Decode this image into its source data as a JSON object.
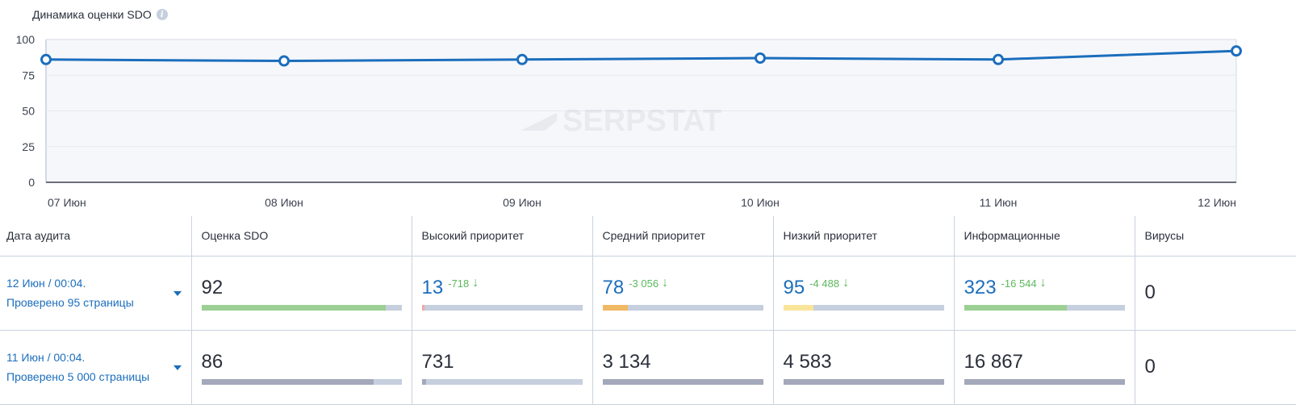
{
  "chart_data": {
    "type": "line",
    "title": "Динамика оценки SDO",
    "xlabel": "",
    "ylabel": "",
    "ylim": [
      0,
      100
    ],
    "yticks": [
      0,
      25,
      50,
      75,
      100
    ],
    "categories": [
      "07 Июн",
      "08 Июн",
      "09 Июн",
      "10 Июн",
      "11 Июн",
      "12 Июн"
    ],
    "series": [
      {
        "name": "Оценка SDO",
        "values": [
          86,
          85,
          86,
          87,
          86,
          92
        ],
        "color": "#1b6ebd"
      }
    ],
    "grid": true,
    "watermark": "SERPSTAT"
  },
  "header": {
    "title": "Динамика оценки SDO",
    "info_icon": "info-icon"
  },
  "table": {
    "columns": [
      "Дата аудита",
      "Оценка SDO",
      "Высокий приоритет",
      "Средний приоритет",
      "Низкий приоритет",
      "Информационные",
      "Вирусы"
    ],
    "rows": [
      {
        "date": "12 Июн / 00:04.",
        "pages": "Проверено 95 страницы",
        "sdo": {
          "value": "92",
          "pct": 92,
          "color": "#9ccf94"
        },
        "high": {
          "value": "13",
          "delta": "-718",
          "pct": 2,
          "color": "#f5a5a5"
        },
        "medium": {
          "value": "78",
          "delta": "-3 056",
          "pct": 16,
          "color": "#f0b965"
        },
        "low": {
          "value": "95",
          "delta": "-4 488",
          "pct": 19,
          "color": "#f8e59a"
        },
        "info": {
          "value": "323",
          "delta": "-16 544",
          "pct": 64,
          "color": "#9ccf94"
        },
        "viruses": "0"
      },
      {
        "date": "11 Июн / 00:04.",
        "pages": "Проверено 5 000 страницы",
        "sdo": {
          "value": "86",
          "pct": 86,
          "color": "#a3a8bb"
        },
        "high": {
          "value": "731",
          "pct": 3,
          "color": "#a3a8bb"
        },
        "medium": {
          "value": "3 134",
          "pct": 100,
          "color": "#a3a8bb"
        },
        "low": {
          "value": "4 583",
          "pct": 100,
          "color": "#a3a8bb"
        },
        "info": {
          "value": "16 867",
          "pct": 100,
          "color": "#a3a8bb"
        },
        "viruses": "0"
      }
    ]
  },
  "colors": {
    "accent": "#1b6ebd",
    "positive_delta": "#5cb85c",
    "border": "#c8d2df",
    "bar_track": "#c6cfdd"
  }
}
